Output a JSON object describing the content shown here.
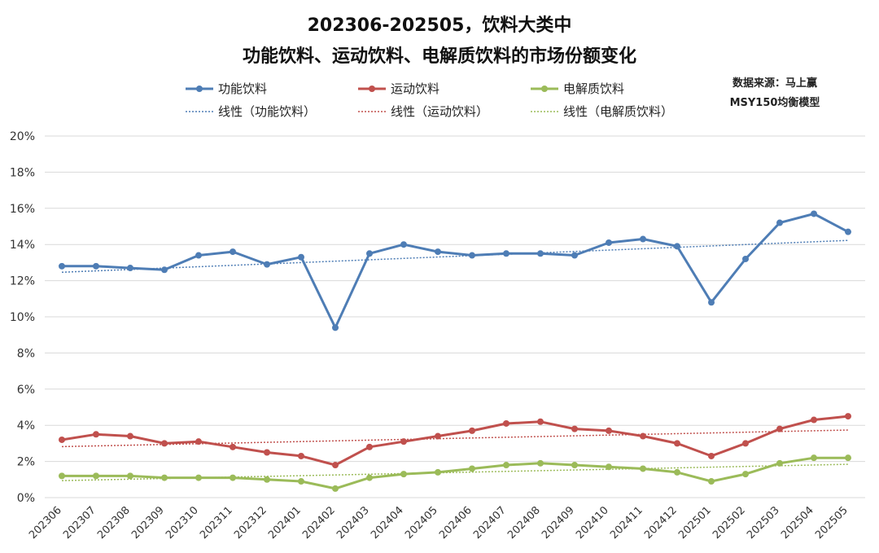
{
  "title_line1": "202306-202505，饮料大类中",
  "title_line2": "功能饮料、运动饮料、电解质饮料的市场份额变化",
  "source_line1": "数据来源：马上赢",
  "source_line2": "MSY150均衡模型",
  "colors": {
    "functional": "#4e7db5",
    "sports": "#c0504d",
    "electrolyte": "#9bbb59",
    "grid": "#d9d9d9"
  },
  "legend": {
    "series": [
      "功能饮料",
      "运动饮料",
      "电解质饮料"
    ],
    "trend": [
      "线性（功能饮料）",
      "线性（运动饮料）",
      "线性（电解质饮料）"
    ]
  },
  "chart_data": {
    "type": "line",
    "title": "202306-202505，饮料大类中 功能饮料、运动饮料、电解质饮料的市场份额变化",
    "categories": [
      "202306",
      "202307",
      "202308",
      "202309",
      "202310",
      "202311",
      "202312",
      "202401",
      "202402",
      "202403",
      "202404",
      "202405",
      "202406",
      "202407",
      "202408",
      "202409",
      "202410",
      "202411",
      "202412",
      "202501",
      "202502",
      "202503",
      "202504",
      "202505"
    ],
    "ylim": [
      0,
      20
    ],
    "y_unit": "%",
    "y_ticks": [
      "0%",
      "2%",
      "4%",
      "6%",
      "8%",
      "10%",
      "12%",
      "14%",
      "16%",
      "18%",
      "20%"
    ],
    "grid": true,
    "legend_position": "top",
    "series": [
      {
        "name": "功能饮料",
        "color": "#4e7db5",
        "trendline": "linear",
        "values": [
          12.8,
          12.8,
          12.7,
          12.6,
          13.4,
          13.6,
          12.9,
          13.3,
          9.4,
          13.5,
          14.0,
          13.6,
          13.4,
          13.5,
          13.5,
          13.4,
          14.1,
          14.3,
          13.9,
          10.8,
          13.2,
          15.2,
          15.7,
          14.7
        ]
      },
      {
        "name": "运动饮料",
        "color": "#c0504d",
        "trendline": "linear",
        "values": [
          3.2,
          3.5,
          3.4,
          3.0,
          3.1,
          2.8,
          2.5,
          2.3,
          1.8,
          2.8,
          3.1,
          3.4,
          3.7,
          4.1,
          4.2,
          3.8,
          3.7,
          3.4,
          3.0,
          2.3,
          3.0,
          3.8,
          4.3,
          4.5
        ]
      },
      {
        "name": "电解质饮料",
        "color": "#9bbb59",
        "trendline": "linear",
        "values": [
          1.2,
          1.2,
          1.2,
          1.1,
          1.1,
          1.1,
          1.0,
          0.9,
          0.5,
          1.1,
          1.3,
          1.4,
          1.6,
          1.8,
          1.9,
          1.8,
          1.7,
          1.6,
          1.4,
          0.9,
          1.3,
          1.9,
          2.2,
          2.2
        ]
      }
    ]
  }
}
